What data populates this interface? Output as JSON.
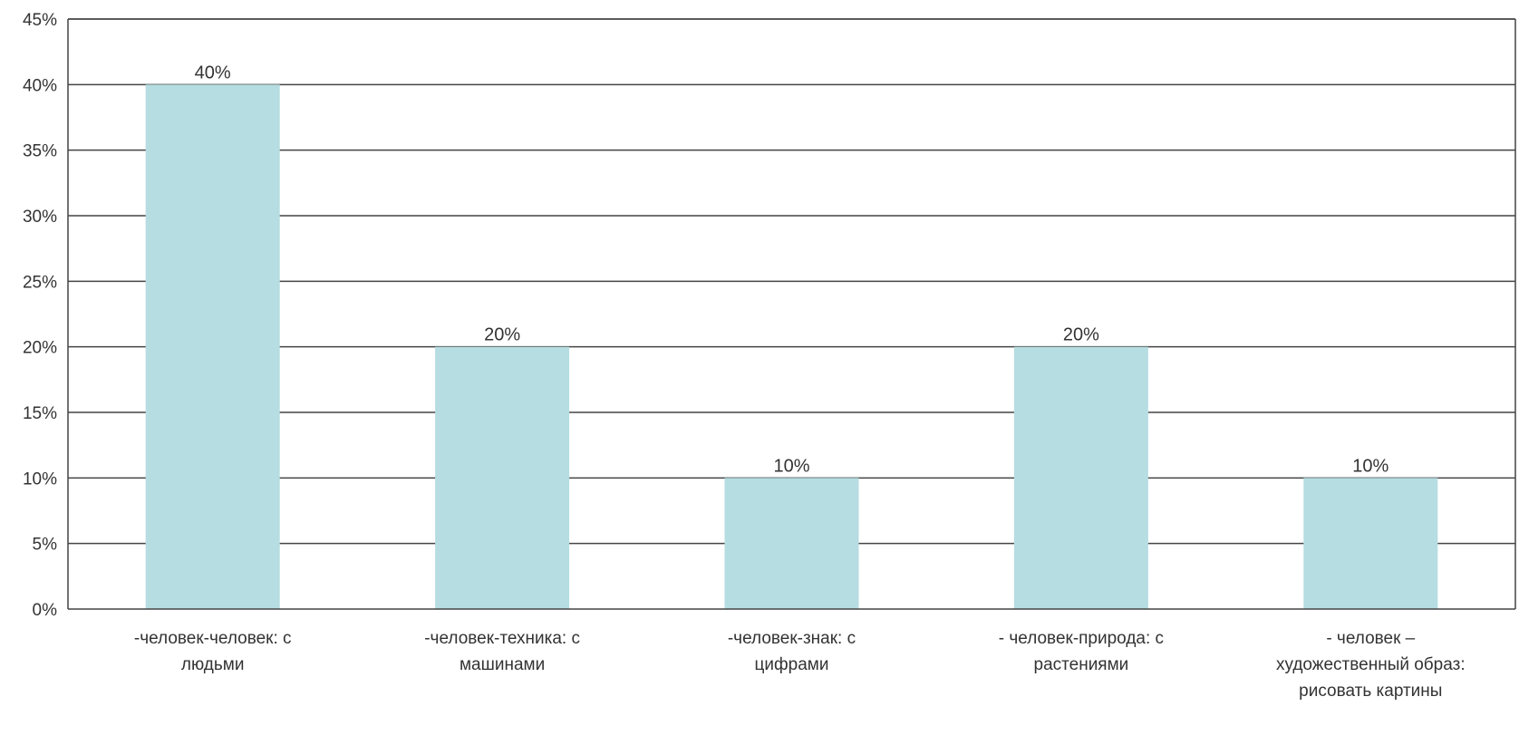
{
  "chart_data": {
    "type": "bar",
    "categories": [
      "-человек-человек: с людьми",
      "-человек-техника: с машинами",
      "-человек-знак: с цифрами",
      "- человек-природа: с растениями",
      "- человек – художественный образ: рисовать картины"
    ],
    "category_lines": [
      [
        "-человек-человек: с",
        "людьми"
      ],
      [
        "-человек-техника: с",
        "машинами"
      ],
      [
        "-человек-знак: с",
        "цифрами"
      ],
      [
        "- человек-природа: с",
        "растениями"
      ],
      [
        "- человек –",
        "художественный образ:",
        "рисовать картины"
      ]
    ],
    "values": [
      40,
      20,
      10,
      20,
      10
    ],
    "data_labels": [
      "40%",
      "20%",
      "10%",
      "20%",
      "10%"
    ],
    "yticks": [
      "0%",
      "5%",
      "10%",
      "15%",
      "20%",
      "25%",
      "30%",
      "35%",
      "40%",
      "45%"
    ],
    "ylim": [
      0,
      45
    ],
    "ystep": 5,
    "grid": true,
    "legend": "none",
    "title": "",
    "xlabel": "",
    "ylabel": "",
    "colors": {
      "bar": "#b6dde1",
      "grid": "#444444",
      "axis": "#444444",
      "text": "#333333"
    }
  }
}
